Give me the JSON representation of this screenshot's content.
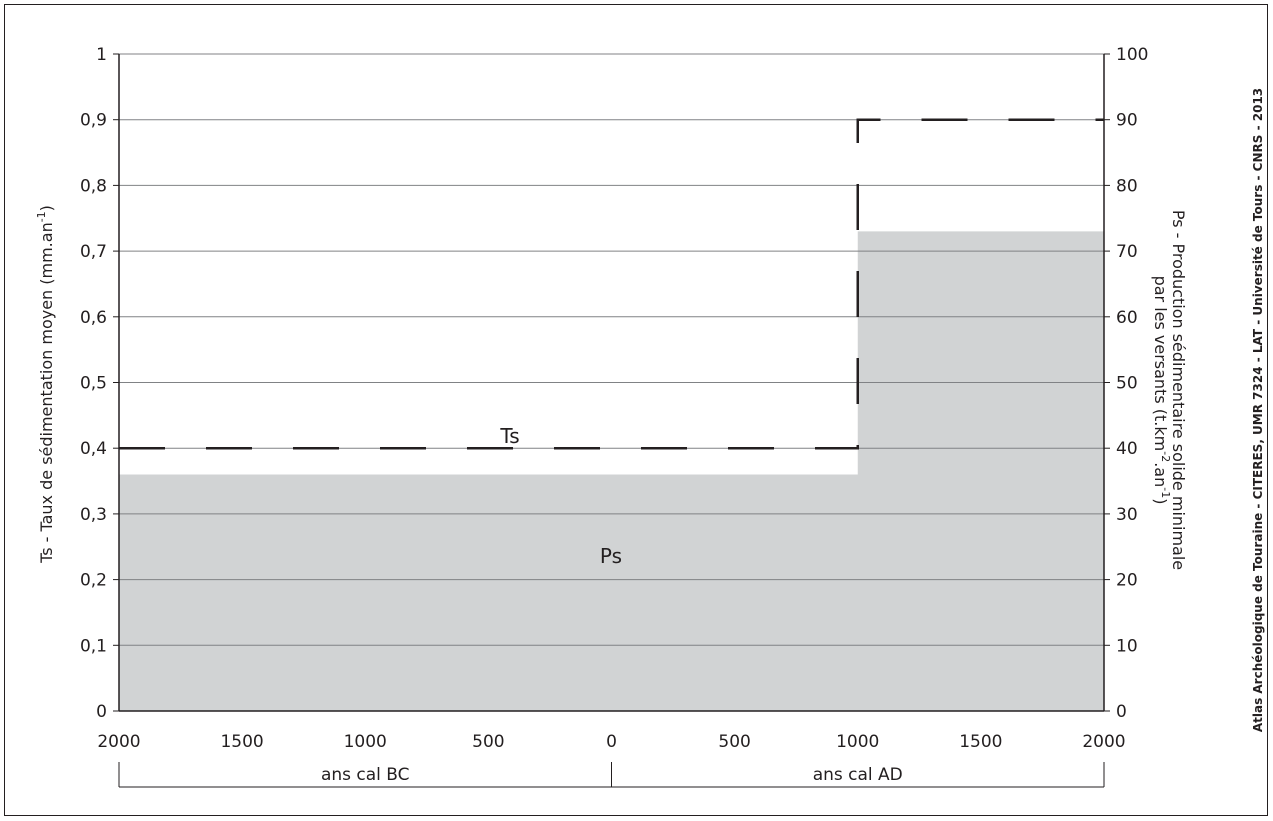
{
  "chart_data": {
    "type": "area",
    "x_ticks": [
      "2000",
      "1500",
      "1000",
      "500",
      "0",
      "500",
      "1000",
      "1500",
      "2000"
    ],
    "x_values": [
      -2000,
      -1500,
      -1000,
      -500,
      0,
      500,
      1000,
      1500,
      2000
    ],
    "xlim": [
      -2000,
      2000
    ],
    "y_left": {
      "label": "Ts - Taux de sédimentation moyen (mm.an",
      "label_sup": "-1",
      "label_end": ")",
      "lim": [
        0,
        1
      ],
      "ticks": [
        "0",
        "0,1",
        "0,2",
        "0,3",
        "0,4",
        "0,5",
        "0,6",
        "0,7",
        "0,8",
        "0,9",
        "1"
      ]
    },
    "y_right": {
      "label_line1": "Ps - Production sédimentaire solide minimale",
      "label_line2_a": "par les versants (t.km",
      "label_line2_sup1": "-2",
      "label_line2_b": ".an",
      "label_line2_sup2": "-1",
      "label_line2_c": ")",
      "lim": [
        0,
        100
      ],
      "ticks": [
        "0",
        "10",
        "20",
        "30",
        "40",
        "50",
        "60",
        "70",
        "80",
        "90",
        "100"
      ]
    },
    "grid": true,
    "series": [
      {
        "name": "Ts",
        "style": "dashed-line",
        "axis": "left",
        "color": "#231f20",
        "points": [
          [
            -2000,
            0.4
          ],
          [
            1000,
            0.4
          ],
          [
            1000,
            0.9
          ],
          [
            2000,
            0.9
          ]
        ]
      },
      {
        "name": "Ps",
        "style": "filled-area",
        "axis": "right",
        "color": "#d1d3d4",
        "points": [
          [
            -2000,
            36
          ],
          [
            1000,
            36
          ],
          [
            1000,
            73
          ],
          [
            2000,
            73
          ]
        ]
      }
    ],
    "periods": [
      {
        "label": "ans cal BC",
        "from": -2000,
        "to": 0
      },
      {
        "label": "ans cal AD",
        "from": 0,
        "to": 2000
      }
    ]
  },
  "credit": "Atlas Archéologique de Touraine - CITERES, UMR 7324 - LAT - Université de Tours - CNRS - 2013"
}
